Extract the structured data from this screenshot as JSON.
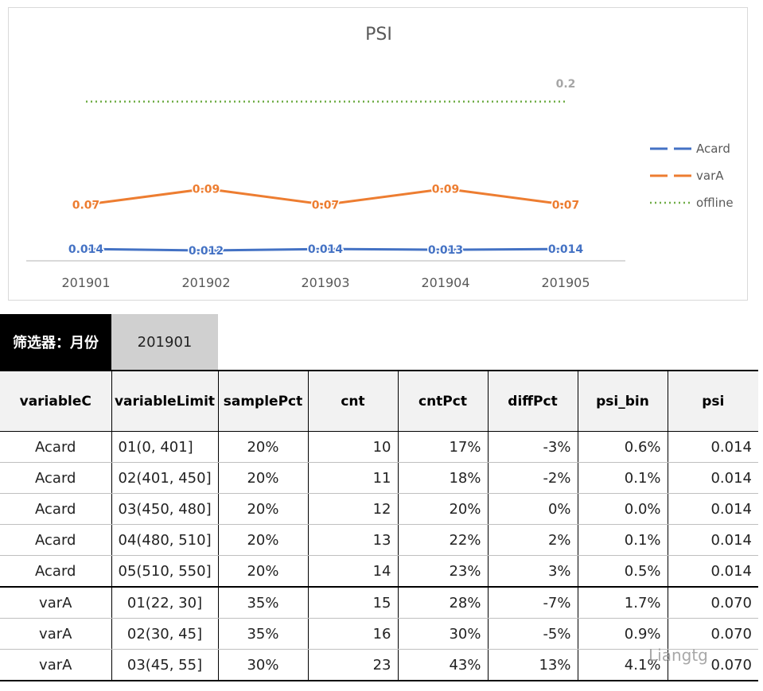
{
  "chart_data": {
    "type": "line",
    "title": "PSI",
    "categories": [
      "201901",
      "201902",
      "201903",
      "201904",
      "201905"
    ],
    "series": [
      {
        "name": "Acard",
        "values": [
          0.014,
          0.012,
          0.014,
          0.013,
          0.014
        ],
        "labels": [
          "0.014",
          "0.012",
          "0.014",
          "0.013",
          "0.014"
        ],
        "color": "#4472c4",
        "style": "solid"
      },
      {
        "name": "varA",
        "values": [
          0.07,
          0.09,
          0.07,
          0.09,
          0.07
        ],
        "labels": [
          "0.07",
          "0.09",
          "0.07",
          "0.09",
          "0.07"
        ],
        "color": "#ed7d31",
        "style": "solid"
      },
      {
        "name": "offline",
        "values": [
          0.2,
          0.2,
          0.2,
          0.2,
          0.2
        ],
        "labels": [
          "",
          "",
          "",
          "",
          "0.2"
        ],
        "color": "#70ad47",
        "style": "dotted"
      }
    ],
    "legend": "right",
    "grid": false,
    "ylim": [
      0,
      0.25
    ]
  },
  "filter": {
    "label": "筛选器：月份",
    "value": "201901"
  },
  "table": {
    "headers": [
      "variableC",
      "variableLimit",
      "samplePct",
      "cnt",
      "cntPct",
      "diffPct",
      "psi_bin",
      "psi"
    ],
    "rows": [
      [
        "Acard",
        "01(0, 401]",
        "20%",
        "10",
        "17%",
        "-3%",
        "0.6%",
        "0.014"
      ],
      [
        "Acard",
        "02(401, 450]",
        "20%",
        "11",
        "18%",
        "-2%",
        "0.1%",
        "0.014"
      ],
      [
        "Acard",
        "03(450, 480]",
        "20%",
        "12",
        "20%",
        "0%",
        "0.0%",
        "0.014"
      ],
      [
        "Acard",
        "04(480, 510]",
        "20%",
        "13",
        "22%",
        "2%",
        "0.1%",
        "0.014"
      ],
      [
        "Acard",
        "05(510, 550]",
        "20%",
        "14",
        "23%",
        "3%",
        "0.5%",
        "0.014"
      ],
      [
        "varA",
        "01(22, 30]",
        "35%",
        "15",
        "28%",
        "-7%",
        "1.7%",
        "0.070"
      ],
      [
        "varA",
        "02(30, 45]",
        "35%",
        "16",
        "30%",
        "-5%",
        "0.9%",
        "0.070"
      ],
      [
        "varA",
        "03(45, 55]",
        "30%",
        "23",
        "43%",
        "13%",
        "4.1%",
        "0.070"
      ]
    ]
  },
  "watermark": "Liangtg"
}
